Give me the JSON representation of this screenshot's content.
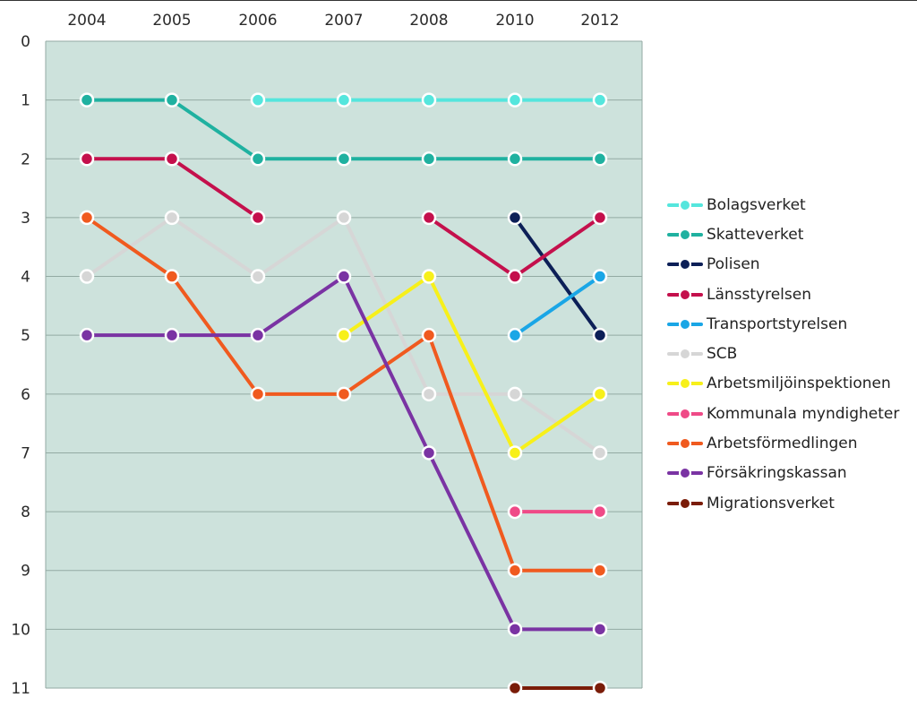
{
  "chart_data": {
    "type": "line",
    "title": "",
    "xlabel": "",
    "ylabel": "",
    "x": [
      "2004",
      "2005",
      "2006",
      "2007",
      "2008",
      "2010",
      "2012"
    ],
    "y_ticks": [
      "0",
      "1",
      "2",
      "3",
      "4",
      "5",
      "6",
      "7",
      "8",
      "9",
      "10",
      "11"
    ],
    "ylim": [
      0,
      11
    ],
    "y_inverted": true,
    "grid": true,
    "legend_position": "right",
    "background": "#cde2dc",
    "series": [
      {
        "name": "Bolagsverket",
        "color": "#55e6dd",
        "values": [
          null,
          null,
          1,
          1,
          1,
          1,
          1
        ]
      },
      {
        "name": "Skatteverket",
        "color": "#1fb1a0",
        "values": [
          1,
          1,
          2,
          2,
          2,
          2,
          2
        ]
      },
      {
        "name": "Polisen",
        "color": "#0c1f57",
        "values": [
          null,
          null,
          null,
          null,
          null,
          3,
          5
        ]
      },
      {
        "name": "Länsstyrelsen",
        "color": "#c4104c",
        "segments": [
          [
            [
              0,
              2
            ],
            [
              1,
              2
            ],
            [
              2,
              3
            ]
          ],
          [
            [
              4,
              3
            ],
            [
              5,
              4
            ],
            [
              6,
              3
            ]
          ]
        ]
      },
      {
        "name": "Transportstyrelsen",
        "color": "#1aa6e6",
        "values": [
          null,
          null,
          null,
          null,
          null,
          5,
          4
        ]
      },
      {
        "name": "SCB",
        "color": "#d6d6d6",
        "values": [
          4,
          3,
          4,
          3,
          6,
          6,
          7
        ]
      },
      {
        "name": "Arbetsmiljöinspektionen",
        "color": "#f7f01a",
        "values": [
          null,
          null,
          null,
          5,
          4,
          7,
          6
        ]
      },
      {
        "name": "Kommunala myndigheter",
        "color": "#ef4a87",
        "values": [
          null,
          null,
          null,
          null,
          null,
          8,
          8
        ]
      },
      {
        "name": "Arbetsförmedlingen",
        "color": "#f05a1f",
        "values": [
          3,
          4,
          6,
          6,
          5,
          9,
          9
        ]
      },
      {
        "name": "Försäkringskassan",
        "color": "#7a33a3",
        "values": [
          5,
          5,
          5,
          4,
          7,
          10,
          10
        ]
      },
      {
        "name": "Migrationsverket",
        "color": "#7a1c08",
        "values": [
          null,
          null,
          null,
          null,
          null,
          11,
          11
        ]
      }
    ]
  }
}
